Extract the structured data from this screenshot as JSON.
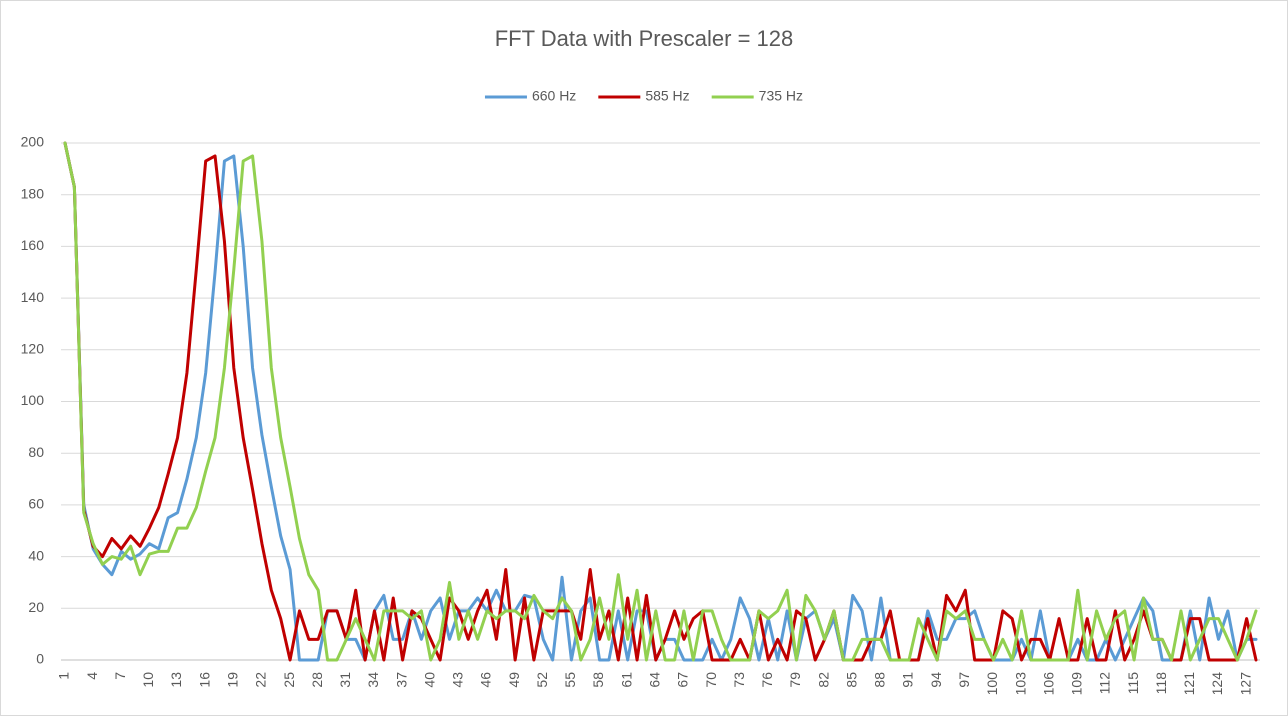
{
  "chart_data": {
    "type": "line",
    "title": "FFT Data with Prescaler = 128",
    "categories": [
      "1",
      null,
      null,
      "4",
      null,
      null,
      "7",
      null,
      null,
      "10",
      null,
      null,
      "13",
      null,
      null,
      "16",
      null,
      null,
      "19",
      null,
      null,
      "22",
      null,
      null,
      "25",
      null,
      null,
      "28",
      null,
      null,
      "31",
      null,
      null,
      "34",
      null,
      null,
      "37",
      null,
      null,
      "40",
      null,
      null,
      "43",
      null,
      null,
      "46",
      null,
      null,
      "49",
      null,
      null,
      "52",
      null,
      null,
      "55",
      null,
      null,
      "58",
      null,
      null,
      "61",
      null,
      null,
      "64",
      null,
      null,
      "67",
      null,
      null,
      "70",
      null,
      null,
      "73",
      null,
      null,
      "76",
      null,
      null,
      "79",
      null,
      null,
      "82",
      null,
      null,
      "85",
      null,
      null,
      "88",
      null,
      null,
      "91",
      null,
      null,
      "94",
      null,
      null,
      "97",
      null,
      null,
      "100",
      null,
      null,
      "103",
      null,
      null,
      "106",
      null,
      null,
      "109",
      null,
      null,
      "112",
      null,
      null,
      "115",
      null,
      null,
      "118",
      null,
      null,
      "121",
      null,
      null,
      "124",
      null,
      null,
      "127",
      null
    ],
    "series": [
      {
        "name": "660 Hz",
        "color": "#5b9bd5",
        "values": [
          200,
          183,
          60,
          43,
          37,
          33,
          42,
          39,
          41,
          45,
          43,
          55,
          57,
          70,
          86,
          111,
          150,
          193,
          195,
          160,
          113,
          87,
          67,
          48,
          35,
          0,
          0,
          0,
          19,
          19,
          8,
          8,
          0,
          19,
          25,
          8,
          8,
          19,
          8,
          19,
          24,
          8,
          19,
          19,
          24,
          19,
          27,
          19,
          19,
          25,
          24,
          8,
          0,
          32,
          0,
          19,
          24,
          0,
          0,
          19,
          0,
          19,
          19,
          0,
          8,
          8,
          0,
          0,
          0,
          8,
          0,
          8,
          24,
          16,
          0,
          16,
          0,
          19,
          0,
          16,
          19,
          8,
          16,
          0,
          25,
          19,
          0,
          24,
          0,
          0,
          0,
          0,
          19,
          8,
          8,
          16,
          16,
          19,
          8,
          0,
          0,
          0,
          8,
          0,
          19,
          0,
          0,
          0,
          8,
          0,
          0,
          8,
          0,
          8,
          16,
          24,
          19,
          0,
          0,
          0,
          19,
          0,
          24,
          8,
          19,
          0,
          8,
          8
        ]
      },
      {
        "name": "585 Hz",
        "color": "#c00000",
        "values": [
          200,
          183,
          58,
          44,
          40,
          47,
          43,
          48,
          44,
          51,
          59,
          72,
          86,
          111,
          151,
          193,
          195,
          162,
          113,
          86,
          66,
          45,
          27,
          16,
          0,
          19,
          8,
          8,
          19,
          19,
          8,
          27,
          0,
          19,
          0,
          24,
          0,
          19,
          16,
          8,
          0,
          24,
          19,
          8,
          19,
          27,
          8,
          35,
          0,
          24,
          0,
          19,
          19,
          19,
          19,
          8,
          35,
          8,
          19,
          0,
          24,
          0,
          25,
          0,
          8,
          19,
          8,
          16,
          19,
          0,
          0,
          0,
          8,
          0,
          19,
          0,
          8,
          0,
          19,
          16,
          0,
          8,
          19,
          0,
          0,
          0,
          8,
          8,
          19,
          0,
          0,
          0,
          16,
          0,
          25,
          19,
          27,
          0,
          0,
          0,
          19,
          16,
          0,
          8,
          8,
          0,
          16,
          0,
          0,
          16,
          0,
          0,
          19,
          0,
          8,
          19,
          8,
          8,
          0,
          0,
          16,
          16,
          0,
          0,
          0,
          0,
          16,
          0
        ]
      },
      {
        "name": "735 Hz",
        "color": "#92d050",
        "values": [
          200,
          183,
          57,
          45,
          37,
          40,
          39,
          44,
          33,
          41,
          42,
          42,
          51,
          51,
          59,
          73,
          86,
          113,
          151,
          193,
          195,
          162,
          113,
          86,
          67,
          47,
          33,
          27,
          0,
          0,
          8,
          16,
          8,
          0,
          19,
          19,
          19,
          16,
          19,
          0,
          8,
          30,
          8,
          19,
          8,
          19,
          16,
          19,
          19,
          16,
          25,
          19,
          16,
          24,
          19,
          0,
          8,
          24,
          8,
          33,
          8,
          27,
          0,
          19,
          0,
          0,
          19,
          0,
          19,
          19,
          8,
          0,
          0,
          0,
          19,
          16,
          19,
          27,
          0,
          25,
          19,
          8,
          19,
          0,
          0,
          8,
          8,
          8,
          0,
          0,
          0,
          16,
          8,
          0,
          19,
          16,
          19,
          8,
          8,
          0,
          8,
          0,
          19,
          0,
          0,
          0,
          0,
          0,
          27,
          0,
          19,
          8,
          16,
          19,
          0,
          24,
          8,
          8,
          0,
          19,
          0,
          8,
          16,
          16,
          8,
          0,
          8,
          19
        ]
      }
    ],
    "ylim": [
      0,
      200
    ],
    "yticks": [
      0,
      20,
      40,
      60,
      80,
      100,
      120,
      140,
      160,
      180,
      200
    ],
    "grid": true,
    "legend": "top"
  }
}
